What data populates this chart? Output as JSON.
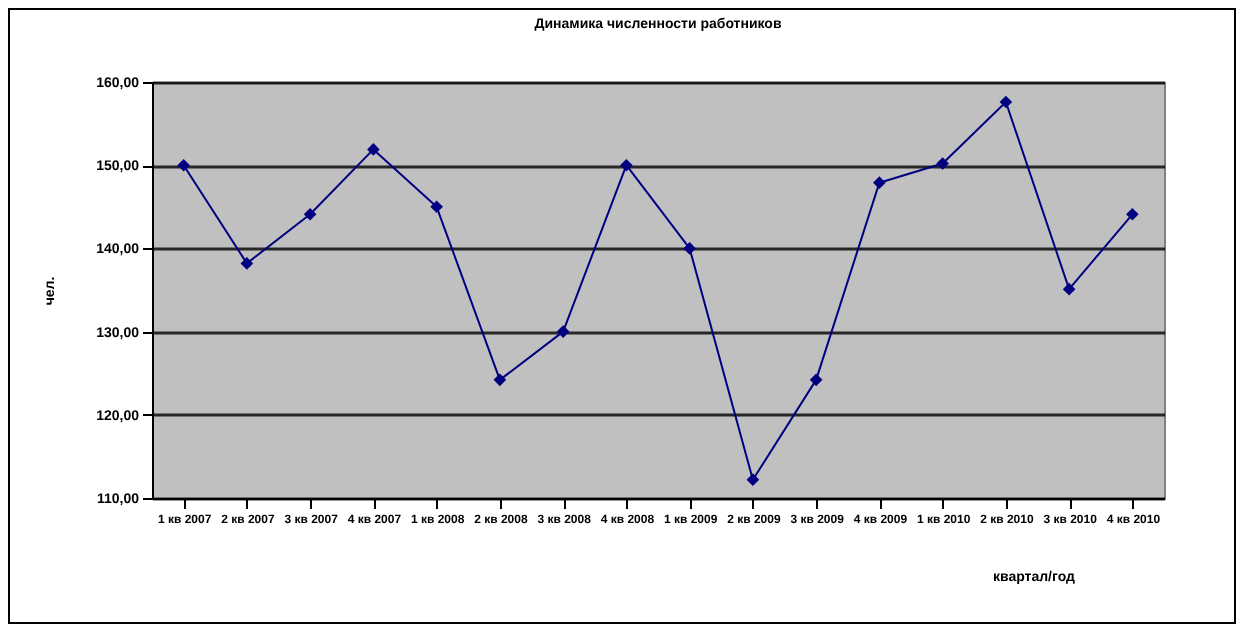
{
  "chart_data": {
    "type": "line",
    "title": "Динамика численности работников",
    "xlabel": "квартал/год",
    "ylabel": "чел.",
    "categories": [
      "1 кв 2007",
      "2 кв 2007",
      "3 кв 2007",
      "4 кв 2007",
      "1 кв 2008",
      "2 кв 2008",
      "3 кв 2008",
      "4 кв 2008",
      "1 кв 2009",
      "2 кв 2009",
      "3 кв 2009",
      "4 кв 2009",
      "1 кв 2010",
      "2 кв 2010",
      "3 кв 2010",
      "4 кв 2010"
    ],
    "series": [
      {
        "color": "#000080",
        "values": [
          150,
          138.2,
          144.1,
          151.9,
          145,
          124.2,
          130,
          150,
          140,
          112.2,
          124.2,
          147.9,
          150.2,
          157.6,
          135.1,
          144.1
        ]
      }
    ],
    "ylim": [
      110,
      160
    ],
    "yticks": [
      {
        "value": 110,
        "label": "110,00"
      },
      {
        "value": 120,
        "label": "120,00"
      },
      {
        "value": 130,
        "label": "130,00"
      },
      {
        "value": 140,
        "label": "140,00"
      },
      {
        "value": 150,
        "label": "150,00"
      },
      {
        "value": 160,
        "label": "160,00"
      }
    ],
    "grid": "y",
    "marker": "diamond",
    "line_style": "solid"
  }
}
